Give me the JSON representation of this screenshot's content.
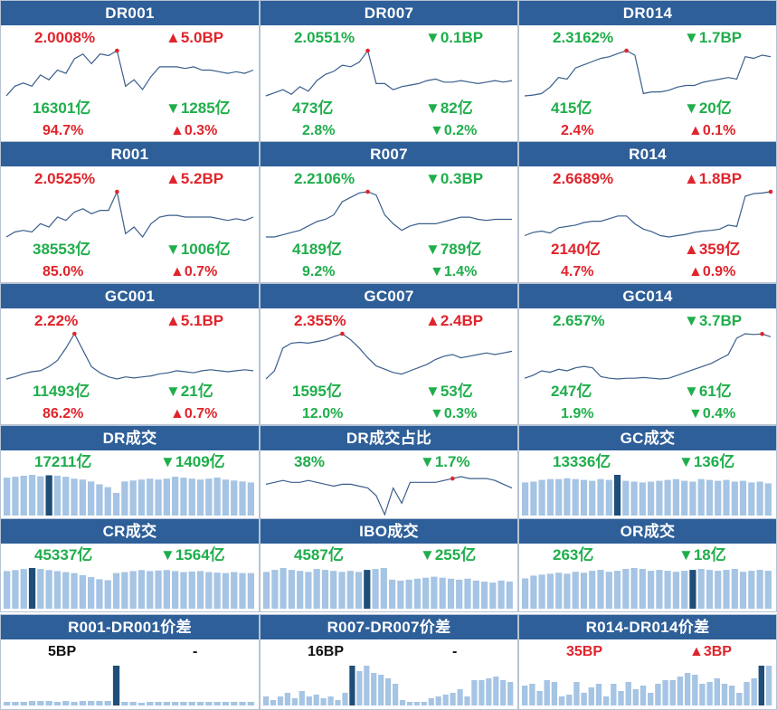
{
  "colors": {
    "header": "#2e5f99",
    "up": "#e0242b",
    "down": "#1fae4b",
    "line": "#3a5e8c",
    "bar": "#a6c4e3",
    "bar_hi": "#1f4e79"
  },
  "rate_panels": [
    {
      "title": "DR001",
      "rate": "2.0008%",
      "rate_dir": "up",
      "chg": "▲5.0BP",
      "chg_dir": "up",
      "vol": "16301亿",
      "vol_dir": "down",
      "vol_chg": "▼1285亿",
      "vol_chg_dir": "down",
      "share": "94.7%",
      "share_dir": "up",
      "share_chg": "▲0.3%",
      "share_chg_dir": "up",
      "chart_data": {
        "type": "line",
        "values": [
          1.72,
          1.78,
          1.8,
          1.78,
          1.85,
          1.82,
          1.88,
          1.86,
          1.95,
          1.98,
          1.92,
          1.98,
          1.97,
          2.0008,
          1.78,
          1.82,
          1.76,
          1.84,
          1.9,
          1.9,
          1.9,
          1.89,
          1.9,
          1.88,
          1.88,
          1.87,
          1.86,
          1.87,
          1.86,
          1.88
        ],
        "peak_index": 13
      }
    },
    {
      "title": "DR007",
      "rate": "2.0551%",
      "rate_dir": "down",
      "chg": "▼0.1BP",
      "chg_dir": "down",
      "vol": "473亿",
      "vol_dir": "down",
      "vol_chg": "▼82亿",
      "vol_chg_dir": "down",
      "share": "2.8%",
      "share_dir": "down",
      "share_chg": "▼0.2%",
      "share_chg_dir": "down",
      "chart_data": {
        "type": "line",
        "values": [
          1.76,
          1.78,
          1.8,
          1.77,
          1.82,
          1.79,
          1.86,
          1.9,
          1.92,
          1.96,
          1.95,
          1.98,
          2.0551,
          1.84,
          1.84,
          1.8,
          1.82,
          1.83,
          1.84,
          1.86,
          1.87,
          1.85,
          1.85,
          1.86,
          1.85,
          1.84,
          1.85,
          1.86,
          1.85,
          1.86
        ],
        "peak_index": 12
      }
    },
    {
      "title": "DR014",
      "rate": "2.3162%",
      "rate_dir": "down",
      "chg": "▼1.7BP",
      "chg_dir": "down",
      "vol": "415亿",
      "vol_dir": "down",
      "vol_chg": "▼20亿",
      "vol_chg_dir": "down",
      "share": "2.4%",
      "share_dir": "up",
      "share_chg": "▲0.1%",
      "share_chg_dir": "up",
      "chart_data": {
        "type": "line",
        "values": [
          1.75,
          1.76,
          1.78,
          1.86,
          1.98,
          1.96,
          2.1,
          2.14,
          2.18,
          2.22,
          2.24,
          2.28,
          2.3162,
          2.26,
          1.78,
          1.8,
          1.8,
          1.82,
          1.86,
          1.88,
          1.88,
          1.92,
          1.94,
          1.96,
          1.98,
          1.96,
          2.24,
          2.22,
          2.26,
          2.24
        ],
        "peak_index": 12
      }
    },
    {
      "title": "R001",
      "rate": "2.0525%",
      "rate_dir": "up",
      "chg": "▲5.2BP",
      "chg_dir": "up",
      "vol": "38553亿",
      "vol_dir": "down",
      "vol_chg": "▼1006亿",
      "vol_chg_dir": "down",
      "share": "85.0%",
      "share_dir": "up",
      "share_chg": "▲0.7%",
      "share_chg_dir": "up",
      "chart_data": {
        "type": "line",
        "values": [
          1.78,
          1.81,
          1.82,
          1.81,
          1.86,
          1.84,
          1.9,
          1.88,
          1.93,
          1.95,
          1.92,
          1.94,
          1.94,
          2.0525,
          1.8,
          1.84,
          1.78,
          1.86,
          1.9,
          1.91,
          1.91,
          1.9,
          1.9,
          1.9,
          1.9,
          1.89,
          1.88,
          1.89,
          1.88,
          1.9
        ],
        "peak_index": 13
      }
    },
    {
      "title": "R007",
      "rate": "2.2106%",
      "rate_dir": "down",
      "chg": "▼0.3BP",
      "chg_dir": "down",
      "vol": "4189亿",
      "vol_dir": "down",
      "vol_chg": "▼789亿",
      "vol_chg_dir": "down",
      "share": "9.2%",
      "share_dir": "down",
      "share_chg": "▼1.4%",
      "share_chg_dir": "down",
      "chart_data": {
        "type": "line",
        "values": [
          1.8,
          1.8,
          1.82,
          1.84,
          1.86,
          1.9,
          1.94,
          1.96,
          2.0,
          2.12,
          2.16,
          2.2,
          2.2106,
          2.18,
          2.0,
          1.92,
          1.86,
          1.9,
          1.92,
          1.92,
          1.92,
          1.94,
          1.96,
          1.98,
          1.98,
          1.96,
          1.95,
          1.96,
          1.96,
          1.96
        ],
        "peak_index": 12
      }
    },
    {
      "title": "R014",
      "rate": "2.6689%",
      "rate_dir": "up",
      "chg": "▲1.8BP",
      "chg_dir": "up",
      "vol": "2140亿",
      "vol_dir": "up",
      "vol_chg": "▲359亿",
      "vol_chg_dir": "up",
      "share": "4.7%",
      "share_dir": "up",
      "share_chg": "▲0.9%",
      "share_chg_dir": "up",
      "chart_data": {
        "type": "line",
        "values": [
          2.0,
          2.05,
          2.07,
          2.04,
          2.12,
          2.14,
          2.16,
          2.2,
          2.22,
          2.22,
          2.26,
          2.3,
          2.3,
          2.18,
          2.1,
          2.06,
          2.0,
          1.98,
          2.0,
          2.02,
          2.05,
          2.07,
          2.08,
          2.1,
          2.16,
          2.14,
          2.6,
          2.64,
          2.65,
          2.6689
        ],
        "peak_index": 29
      }
    },
    {
      "title": "GC001",
      "rate": "2.22%",
      "rate_dir": "up",
      "chg": "▲5.1BP",
      "chg_dir": "up",
      "vol": "11493亿",
      "vol_dir": "down",
      "vol_chg": "▼21亿",
      "vol_chg_dir": "down",
      "share": "86.2%",
      "share_dir": "up",
      "share_chg": "▲0.7%",
      "share_chg_dir": "up",
      "chart_data": {
        "type": "line",
        "values": [
          1.78,
          1.8,
          1.83,
          1.85,
          1.86,
          1.9,
          1.96,
          2.08,
          2.22,
          2.06,
          1.9,
          1.84,
          1.8,
          1.78,
          1.8,
          1.79,
          1.8,
          1.81,
          1.83,
          1.84,
          1.86,
          1.85,
          1.84,
          1.86,
          1.87,
          1.86,
          1.85,
          1.86,
          1.87,
          1.86
        ],
        "peak_index": 8
      }
    },
    {
      "title": "GC007",
      "rate": "2.355%",
      "rate_dir": "up",
      "chg": "▲2.4BP",
      "chg_dir": "up",
      "vol": "1595亿",
      "vol_dir": "down",
      "vol_chg": "▼53亿",
      "vol_chg_dir": "down",
      "share": "12.0%",
      "share_dir": "down",
      "share_chg": "▼0.3%",
      "share_chg_dir": "down",
      "chart_data": {
        "type": "line",
        "values": [
          1.8,
          1.9,
          2.18,
          2.24,
          2.25,
          2.24,
          2.26,
          2.28,
          2.32,
          2.355,
          2.28,
          2.18,
          2.06,
          1.96,
          1.92,
          1.88,
          1.86,
          1.9,
          1.94,
          1.98,
          2.04,
          2.08,
          2.1,
          2.06,
          2.08,
          2.1,
          2.12,
          2.1,
          2.12,
          2.14
        ],
        "peak_index": 9
      }
    },
    {
      "title": "GC014",
      "rate": "2.657%",
      "rate_dir": "down",
      "chg": "▼3.7BP",
      "chg_dir": "down",
      "vol": "247亿",
      "vol_dir": "down",
      "vol_chg": "▼61亿",
      "vol_chg_dir": "down",
      "share": "1.9%",
      "share_dir": "down",
      "share_chg": "▼0.4%",
      "share_chg_dir": "down",
      "chart_data": {
        "type": "line",
        "values": [
          2.06,
          2.1,
          2.16,
          2.14,
          2.18,
          2.16,
          2.2,
          2.22,
          2.2,
          2.08,
          2.06,
          2.05,
          2.06,
          2.06,
          2.07,
          2.06,
          2.05,
          2.06,
          2.1,
          2.14,
          2.18,
          2.22,
          2.26,
          2.32,
          2.38,
          2.6,
          2.66,
          2.65,
          2.657,
          2.62
        ],
        "peak_index": 28
      }
    }
  ],
  "volume_panels": [
    {
      "title": "DR成交",
      "value": "17211亿",
      "value_dir": "down",
      "chg": "▼1409亿",
      "chg_dir": "down",
      "chart_data": {
        "type": "bar",
        "values": [
          80,
          82,
          84,
          86,
          83,
          85,
          84,
          82,
          78,
          76,
          72,
          66,
          60,
          48,
          72,
          74,
          76,
          78,
          76,
          78,
          82,
          80,
          78,
          76,
          78,
          80,
          76,
          74,
          72,
          70
        ],
        "highlight_index": 5
      }
    },
    {
      "title": "DR成交占比",
      "value": "38%",
      "value_dir": "down",
      "chg": "▼1.7%",
      "chg_dir": "down",
      "chart_data": {
        "type": "line",
        "values": [
          0.46,
          0.47,
          0.48,
          0.47,
          0.47,
          0.48,
          0.47,
          0.46,
          0.45,
          0.46,
          0.46,
          0.45,
          0.44,
          0.4,
          0.3,
          0.44,
          0.36,
          0.47,
          0.47,
          0.47,
          0.47,
          0.48,
          0.49,
          0.5,
          0.49,
          0.49,
          0.49,
          0.48,
          0.46,
          0.44
        ],
        "peak_index": 22
      }
    },
    {
      "title": "GC成交",
      "value": "13336亿",
      "value_dir": "down",
      "chg": "▼136亿",
      "chg_dir": "down",
      "chart_data": {
        "type": "bar",
        "values": [
          78,
          80,
          84,
          86,
          86,
          88,
          86,
          84,
          82,
          86,
          84,
          96,
          82,
          80,
          78,
          80,
          82,
          84,
          86,
          82,
          80,
          86,
          84,
          82,
          84,
          80,
          82,
          78,
          80,
          76
        ],
        "highlight_index": 11
      }
    },
    {
      "title": "CR成交",
      "value": "45337亿",
      "value_dir": "down",
      "chg": "▼1564亿",
      "chg_dir": "down",
      "chart_data": {
        "type": "bar",
        "values": [
          74,
          76,
          78,
          80,
          78,
          76,
          74,
          72,
          70,
          66,
          62,
          58,
          56,
          70,
          72,
          74,
          76,
          74,
          75,
          76,
          74,
          72,
          73,
          74,
          72,
          71,
          70,
          72,
          70,
          70
        ],
        "highlight_index": 3
      }
    },
    {
      "title": "IBO成交",
      "value": "4587亿",
      "value_dir": "down",
      "chg": "▼255亿",
      "chg_dir": "down",
      "chart_data": {
        "type": "bar",
        "values": [
          76,
          80,
          84,
          80,
          78,
          76,
          82,
          80,
          78,
          76,
          78,
          76,
          80,
          82,
          84,
          60,
          58,
          60,
          62,
          64,
          66,
          64,
          62,
          60,
          62,
          58,
          56,
          54,
          58,
          56
        ],
        "highlight_index": 12
      }
    },
    {
      "title": "OR成交",
      "value": "263亿",
      "value_dir": "down",
      "chg": "▼18亿",
      "chg_dir": "down",
      "chart_data": {
        "type": "bar",
        "values": [
          64,
          70,
          72,
          74,
          76,
          74,
          78,
          76,
          80,
          82,
          78,
          80,
          84,
          86,
          84,
          80,
          82,
          80,
          78,
          80,
          82,
          84,
          82,
          80,
          82,
          84,
          78,
          80,
          82,
          80
        ],
        "highlight_index": 20
      }
    }
  ],
  "spread_panels": [
    {
      "title": "R001-DR001价差",
      "value": "5BP",
      "value_dir": "neutral",
      "chg": "-",
      "chg_dir": "neutral",
      "chart_data": {
        "type": "bar",
        "values": [
          4,
          4,
          4,
          5,
          5,
          5,
          4,
          5,
          4,
          5,
          5,
          5,
          5,
          44,
          4,
          4,
          3,
          4,
          4,
          4,
          4,
          4,
          4,
          4,
          4,
          4,
          4,
          4,
          4,
          4
        ],
        "highlight_index": 13
      }
    },
    {
      "title": "R007-DR007价差",
      "value": "16BP",
      "value_dir": "neutral",
      "chg": "-",
      "chg_dir": "neutral",
      "chart_data": {
        "type": "bar",
        "values": [
          10,
          6,
          10,
          14,
          8,
          16,
          10,
          12,
          8,
          10,
          6,
          14,
          44,
          38,
          44,
          36,
          34,
          30,
          24,
          6,
          4,
          4,
          4,
          8,
          10,
          12,
          14,
          18,
          10,
          28,
          28,
          30,
          32,
          28,
          26
        ],
        "highlight_index": 12
      }
    },
    {
      "title": "R014-DR014价差",
      "value": "35BP",
      "value_dir": "up",
      "chg": "▲3BP",
      "chg_dir": "up",
      "chart_data": {
        "type": "bar",
        "values": [
          22,
          24,
          16,
          28,
          26,
          10,
          12,
          26,
          14,
          20,
          24,
          10,
          24,
          16,
          26,
          18,
          22,
          14,
          24,
          28,
          28,
          32,
          36,
          34,
          24,
          26,
          30,
          24,
          22,
          14,
          26,
          30,
          44,
          44
        ],
        "highlight_index": 32
      }
    }
  ]
}
